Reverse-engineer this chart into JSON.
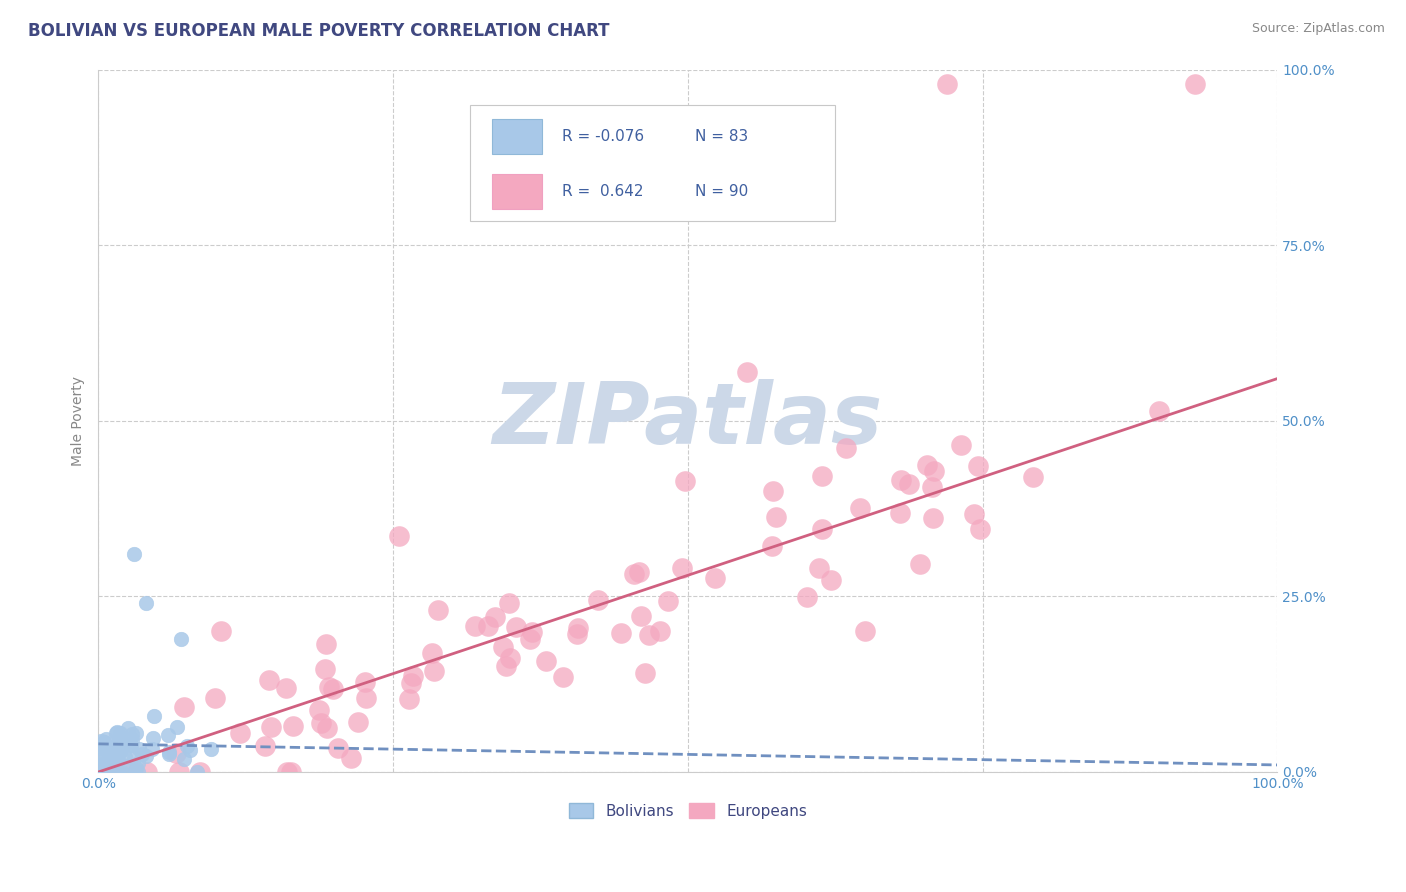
{
  "title": "BOLIVIAN VS EUROPEAN MALE POVERTY CORRELATION CHART",
  "source_text": "Source: ZipAtlas.com",
  "ylabel": "Male Poverty",
  "xlim": [
    0.0,
    1.0
  ],
  "ylim": [
    0.0,
    1.0
  ],
  "xtick_labels": [
    "0.0%",
    "100.0%"
  ],
  "ytick_labels": [
    "0.0%",
    "25.0%",
    "50.0%",
    "75.0%",
    "100.0%"
  ],
  "ytick_values": [
    0.0,
    0.25,
    0.5,
    0.75,
    1.0
  ],
  "xgrid_values": [
    0.0,
    0.25,
    0.5,
    0.75,
    1.0
  ],
  "legend_bolivians": "Bolivians",
  "legend_europeans": "Europeans",
  "r_bolivian": -0.076,
  "n_bolivian": 83,
  "r_european": 0.642,
  "n_european": 90,
  "color_bolivian": "#a8c8e8",
  "color_european": "#f4a8c0",
  "color_bolivian_line": "#7090c0",
  "color_european_line": "#d06080",
  "eur_line_x0": 0.0,
  "eur_line_y0": 0.0,
  "eur_line_x1": 1.0,
  "eur_line_y1": 0.56,
  "bol_line_x0": 0.0,
  "bol_line_y0": 0.04,
  "bol_line_x1": 1.0,
  "bol_line_y1": 0.01,
  "watermark_text": "ZIPatlas",
  "watermark_color": "#ccd8e8",
  "background_color": "#ffffff",
  "grid_color": "#cccccc",
  "title_color": "#404880",
  "source_color": "#888888",
  "legend_r_color": "#4060a0",
  "axis_label_color": "#888888",
  "tick_color": "#5090c8"
}
